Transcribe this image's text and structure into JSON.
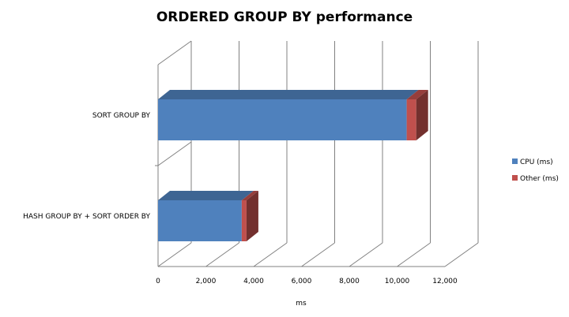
{
  "chart_data": {
    "type": "bar",
    "orientation": "horizontal",
    "stacked": true,
    "three_d": true,
    "title": "ORDERED GROUP BY performance",
    "xlabel": "ms",
    "ylabel": "",
    "categories": [
      "HASH GROUP BY + SORT ORDER BY",
      "SORT GROUP BY"
    ],
    "series": [
      {
        "name": "CPU (ms)",
        "values": [
          3500,
          10400
        ],
        "color": "#4f81bd"
      },
      {
        "name": "Other (ms)",
        "values": [
          200,
          400
        ],
        "color": "#c0504d"
      }
    ],
    "xlim": [
      0,
      12000
    ],
    "xticks": [
      "0",
      "2,000",
      "4,000",
      "6,000",
      "8,000",
      "10,000",
      "12,000"
    ],
    "grid": true,
    "legend": "right"
  }
}
